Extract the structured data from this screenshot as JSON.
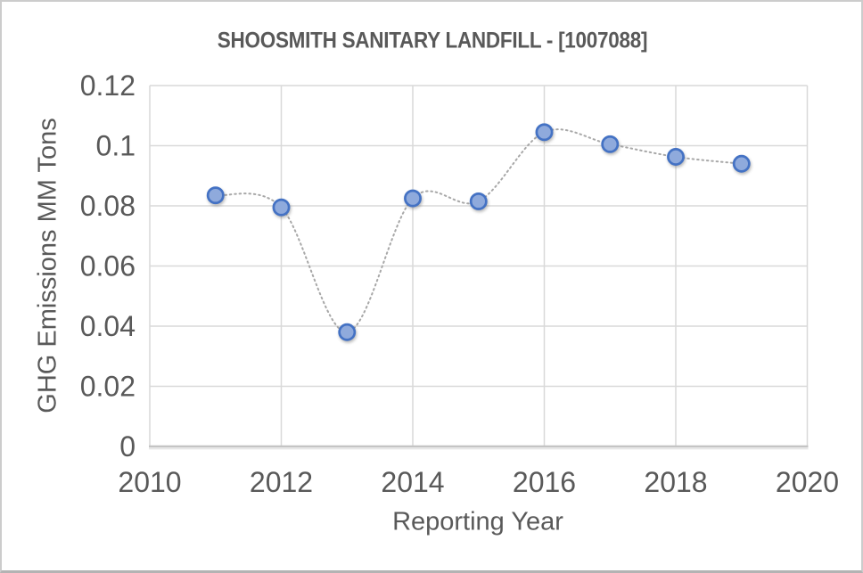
{
  "frame": {
    "background": "#ffffff",
    "border_color": "#cccccc",
    "border_bottom_color": "#b3b3b3"
  },
  "chart_data": {
    "type": "scatter",
    "title": "SHOOSMITH SANITARY LANDFILL - [1007088]",
    "xlabel": "Reporting Year",
    "ylabel": "GHG Emissions MM Tons",
    "x": [
      2011,
      2012,
      2013,
      2014,
      2015,
      2016,
      2017,
      2018,
      2019
    ],
    "y": [
      0.0835,
      0.0795,
      0.038,
      0.0825,
      0.0815,
      0.1045,
      0.1005,
      0.0963,
      0.094
    ],
    "xlim": [
      2010,
      2020
    ],
    "ylim": [
      0,
      0.12
    ],
    "x_ticks": [
      "2010",
      "2012",
      "2014",
      "2016",
      "2018",
      "2020"
    ],
    "y_ticks": [
      "0",
      "0.02",
      "0.04",
      "0.06",
      "0.08",
      "0.1",
      "0.12"
    ],
    "grid": true,
    "legend": false,
    "line_style": "dotted-smooth",
    "marker": "circle",
    "colors": {
      "marker_fill": "#8faadc",
      "marker_stroke": "#4472c4",
      "line": "#a8a8a8",
      "grid": "#d9d9d9",
      "axis_line": "#c4c4c4",
      "text": "#595959"
    }
  }
}
